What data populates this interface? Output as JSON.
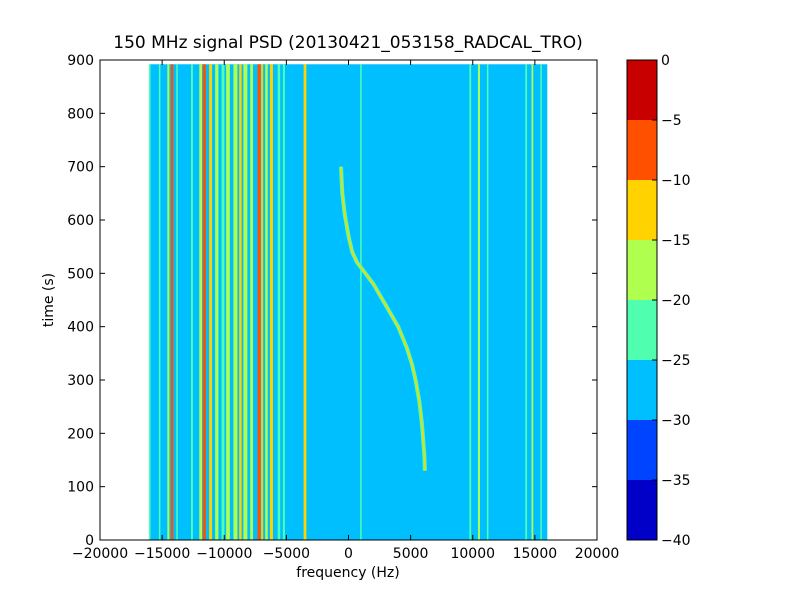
{
  "chart_data": {
    "type": "heatmap",
    "title": "150 MHz signal PSD (20130421_053158_RADCAL_TRO)",
    "xlabel": "frequency (Hz)",
    "ylabel": "time (s)",
    "xlim": [
      -20000,
      20000
    ],
    "ylim": [
      0,
      900
    ],
    "xticks": [
      -20000,
      -15000,
      -10000,
      -5000,
      0,
      5000,
      10000,
      15000,
      20000
    ],
    "yticks": [
      0,
      100,
      200,
      300,
      400,
      500,
      600,
      700,
      800,
      900
    ],
    "data_extent": {
      "freq": [
        -16000,
        16000
      ],
      "time": [
        0,
        892
      ]
    },
    "background_level": -28,
    "colorbar": {
      "range": [
        -40,
        0
      ],
      "ticks": [
        0,
        -5,
        -10,
        -15,
        -20,
        -25,
        -30,
        -35,
        -40
      ],
      "levels": [
        {
          "from": -40,
          "to": -35,
          "color": "#0000c8"
        },
        {
          "from": -35,
          "to": -30,
          "color": "#0044ff"
        },
        {
          "from": -30,
          "to": -25,
          "color": "#00bfff"
        },
        {
          "from": -25,
          "to": -20,
          "color": "#4fffaf"
        },
        {
          "from": -20,
          "to": -15,
          "color": "#afff4f"
        },
        {
          "from": -15,
          "to": -10,
          "color": "#ffd200"
        },
        {
          "from": -10,
          "to": -5,
          "color": "#ff5000"
        },
        {
          "from": -5,
          "to": 0,
          "color": "#c80000"
        }
      ]
    },
    "stationary_lines": [
      {
        "freq": -16000,
        "width": 130,
        "level": -22
      },
      {
        "freq": -15200,
        "width": 120,
        "level": -22
      },
      {
        "freq": -14500,
        "width": 160,
        "level": -18
      },
      {
        "freq": -14200,
        "width": 200,
        "level": -7
      },
      {
        "freq": -13800,
        "width": 120,
        "level": -22
      },
      {
        "freq": -12600,
        "width": 150,
        "level": -22
      },
      {
        "freq": -11900,
        "width": 220,
        "level": -17
      },
      {
        "freq": -11600,
        "width": 240,
        "level": -7
      },
      {
        "freq": -11100,
        "width": 230,
        "level": -12
      },
      {
        "freq": -10600,
        "width": 260,
        "level": -17
      },
      {
        "freq": -10100,
        "width": 230,
        "level": -22
      },
      {
        "freq": -9700,
        "width": 300,
        "level": -17
      },
      {
        "freq": -9100,
        "width": 320,
        "level": -17
      },
      {
        "freq": -8700,
        "width": 200,
        "level": -12
      },
      {
        "freq": -8300,
        "width": 320,
        "level": -17
      },
      {
        "freq": -7800,
        "width": 220,
        "level": -17
      },
      {
        "freq": -7200,
        "width": 240,
        "level": -7
      },
      {
        "freq": -6950,
        "width": 160,
        "level": -12
      },
      {
        "freq": -6600,
        "width": 200,
        "level": -17
      },
      {
        "freq": -6200,
        "width": 240,
        "level": -12
      },
      {
        "freq": -5600,
        "width": 200,
        "level": -22
      },
      {
        "freq": -5200,
        "width": 160,
        "level": -22
      },
      {
        "freq": -3500,
        "width": 220,
        "level": -12
      },
      {
        "freq": 1000,
        "width": 120,
        "level": -22
      },
      {
        "freq": 9800,
        "width": 140,
        "level": -22
      },
      {
        "freq": 10500,
        "width": 160,
        "level": -17
      },
      {
        "freq": 11200,
        "width": 120,
        "level": -22
      },
      {
        "freq": 14300,
        "width": 140,
        "level": -22
      },
      {
        "freq": 14800,
        "width": 140,
        "level": -17
      },
      {
        "freq": 15500,
        "width": 120,
        "level": -22
      }
    ],
    "drifting_signal": {
      "level": -12,
      "points": [
        [
          -600,
          700
        ],
        [
          -500,
          650
        ],
        [
          -300,
          610
        ],
        [
          0,
          570
        ],
        [
          300,
          540
        ],
        [
          700,
          520
        ],
        [
          1200,
          505
        ],
        [
          2000,
          480
        ],
        [
          3000,
          440
        ],
        [
          4000,
          400
        ],
        [
          4700,
          360
        ],
        [
          5100,
          330
        ],
        [
          5400,
          300
        ],
        [
          5700,
          260
        ],
        [
          5900,
          220
        ],
        [
          6000,
          190
        ],
        [
          6100,
          160
        ],
        [
          6150,
          130
        ]
      ]
    }
  }
}
